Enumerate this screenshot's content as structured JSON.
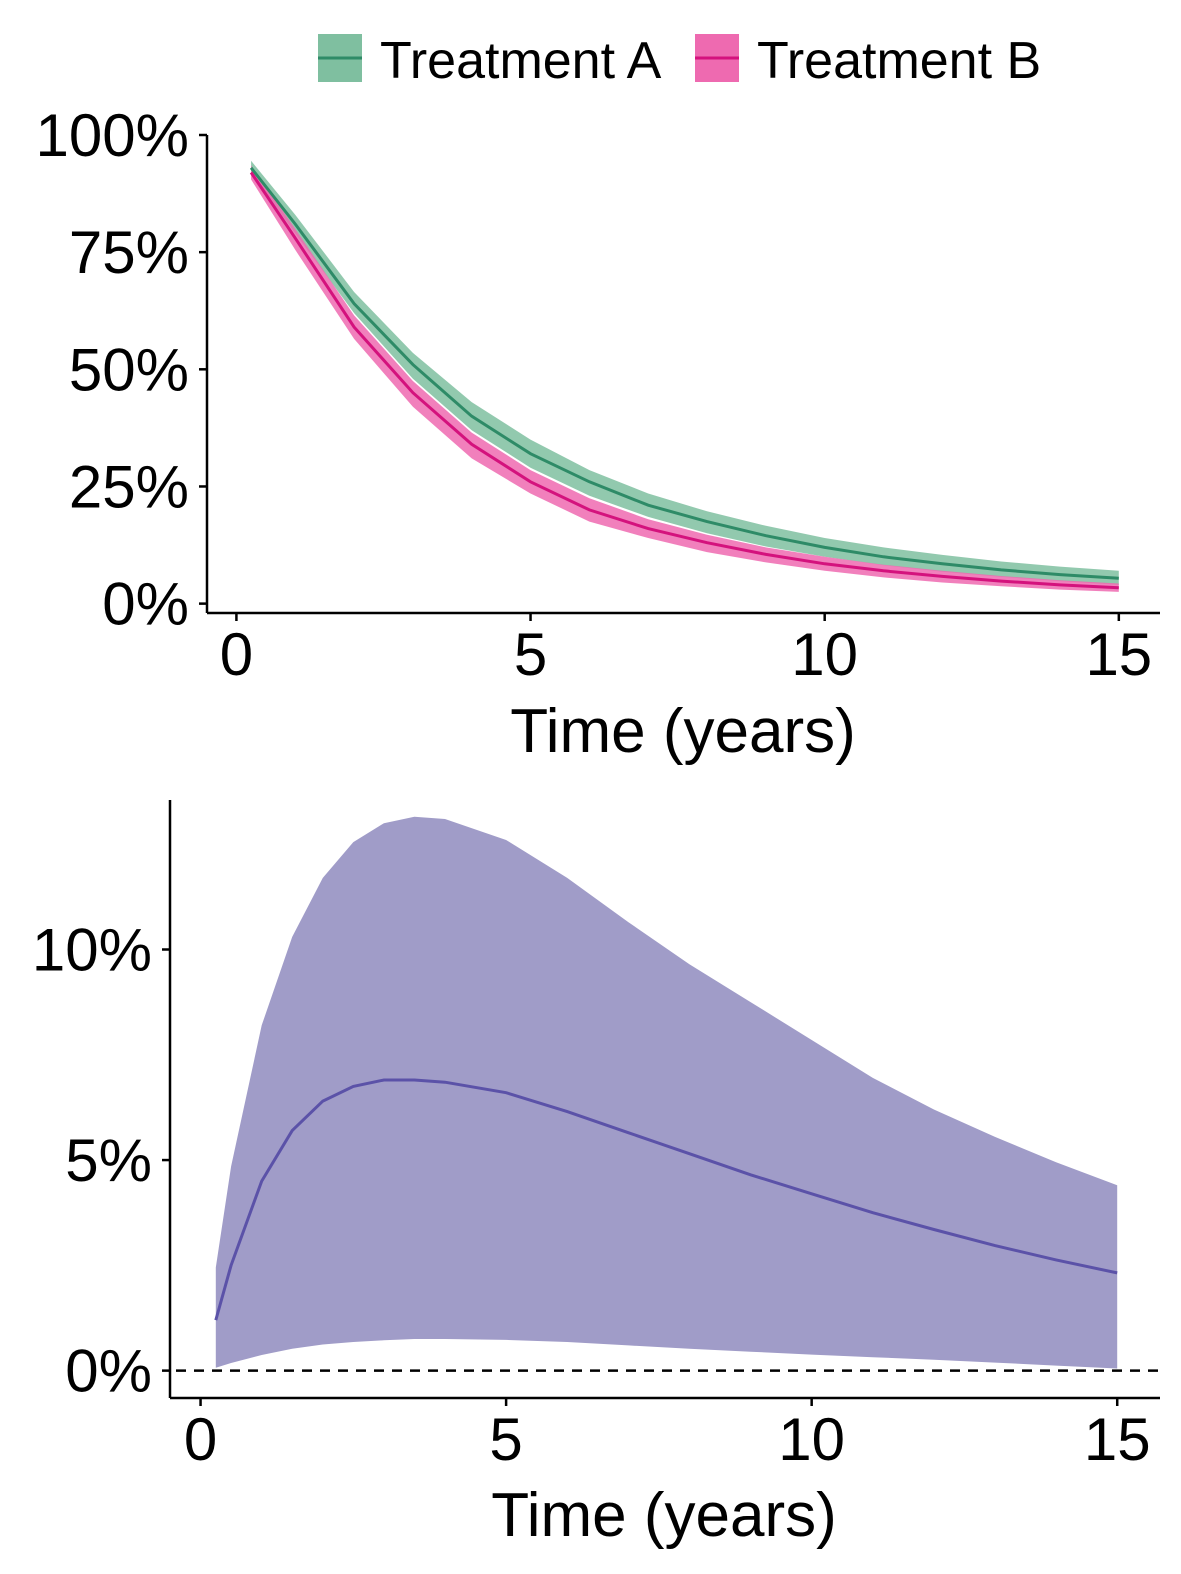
{
  "colors": {
    "treatment_a_line": "#2e8b67",
    "treatment_a_band": "#7fbfa0",
    "treatment_b_line": "#d4127d",
    "treatment_b_band": "#ee6ab0",
    "difference_line": "#5b52a8",
    "difference_band": "#a09cc8",
    "axis": "#000000"
  },
  "chart_data": [
    {
      "type": "line",
      "xlabel": "Time (years)",
      "ylabel": "",
      "xlim": [
        -0.5,
        15.7
      ],
      "ylim": [
        -0.02,
        1.0
      ],
      "x_ticks": [
        0,
        5,
        10,
        15
      ],
      "x_tick_labels": [
        "0",
        "5",
        "10",
        "15"
      ],
      "y_ticks": [
        0,
        0.25,
        0.5,
        0.75,
        1.0
      ],
      "y_tick_labels": [
        "0%",
        "25%",
        "50%",
        "75%",
        "100%"
      ],
      "legend": {
        "position": "top",
        "entries": [
          "Treatment A",
          "Treatment B"
        ]
      },
      "grid": false,
      "x": [
        0.25,
        1,
        2,
        3,
        4,
        5,
        6,
        7,
        8,
        9,
        10,
        11,
        12,
        13,
        14,
        15
      ],
      "series": [
        {
          "name": "Treatment A",
          "values": [
            0.93,
            0.81,
            0.64,
            0.51,
            0.4,
            0.32,
            0.26,
            0.21,
            0.175,
            0.145,
            0.12,
            0.1,
            0.085,
            0.072,
            0.062,
            0.054
          ],
          "lower": [
            0.92,
            0.79,
            0.62,
            0.48,
            0.37,
            0.29,
            0.23,
            0.185,
            0.15,
            0.122,
            0.1,
            0.082,
            0.068,
            0.057,
            0.048,
            0.04
          ],
          "upper": [
            0.945,
            0.83,
            0.665,
            0.535,
            0.43,
            0.35,
            0.285,
            0.235,
            0.197,
            0.166,
            0.14,
            0.12,
            0.104,
            0.09,
            0.079,
            0.07
          ]
        },
        {
          "name": "Treatment B",
          "values": [
            0.92,
            0.78,
            0.59,
            0.45,
            0.34,
            0.26,
            0.2,
            0.16,
            0.13,
            0.105,
            0.085,
            0.07,
            0.058,
            0.048,
            0.04,
            0.034
          ],
          "lower": [
            0.905,
            0.755,
            0.565,
            0.42,
            0.31,
            0.235,
            0.175,
            0.14,
            0.11,
            0.088,
            0.07,
            0.056,
            0.045,
            0.037,
            0.03,
            0.025
          ],
          "upper": [
            0.935,
            0.8,
            0.615,
            0.475,
            0.365,
            0.285,
            0.225,
            0.18,
            0.147,
            0.12,
            0.1,
            0.083,
            0.07,
            0.059,
            0.05,
            0.043
          ]
        }
      ]
    },
    {
      "type": "area",
      "xlabel": "Time (years)",
      "ylabel": "",
      "xlim": [
        -0.5,
        15.7
      ],
      "ylim": [
        -0.0065,
        0.1355
      ],
      "x_ticks": [
        0,
        5,
        10,
        15
      ],
      "x_tick_labels": [
        "0",
        "5",
        "10",
        "15"
      ],
      "y_ticks": [
        0,
        0.05,
        0.1
      ],
      "y_tick_labels": [
        "0%",
        "5%",
        "10%"
      ],
      "reference_line": {
        "y": 0,
        "style": "dashed"
      },
      "grid": false,
      "x": [
        0.25,
        0.5,
        1,
        1.5,
        2,
        2.5,
        3,
        3.5,
        4,
        5,
        6,
        7,
        8,
        9,
        10,
        11,
        12,
        13,
        14,
        15
      ],
      "series": [
        {
          "name": "",
          "values": [
            0.012,
            0.025,
            0.045,
            0.057,
            0.064,
            0.0675,
            0.069,
            0.069,
            0.0685,
            0.066,
            0.0615,
            0.0565,
            0.0515,
            0.0465,
            0.042,
            0.0375,
            0.0335,
            0.0297,
            0.0263,
            0.0232
          ],
          "lower": [
            0.0007,
            0.0018,
            0.0037,
            0.0052,
            0.0062,
            0.0068,
            0.0072,
            0.0075,
            0.0075,
            0.0073,
            0.0068,
            0.006,
            0.0052,
            0.0045,
            0.0038,
            0.0032,
            0.0026,
            0.0019,
            0.0012,
            0.0005
          ],
          "upper": [
            0.0245,
            0.0485,
            0.082,
            0.103,
            0.117,
            0.1255,
            0.13,
            0.1315,
            0.131,
            0.126,
            0.117,
            0.1065,
            0.0965,
            0.0875,
            0.0785,
            0.0695,
            0.062,
            0.0555,
            0.0495,
            0.044
          ]
        }
      ]
    }
  ]
}
